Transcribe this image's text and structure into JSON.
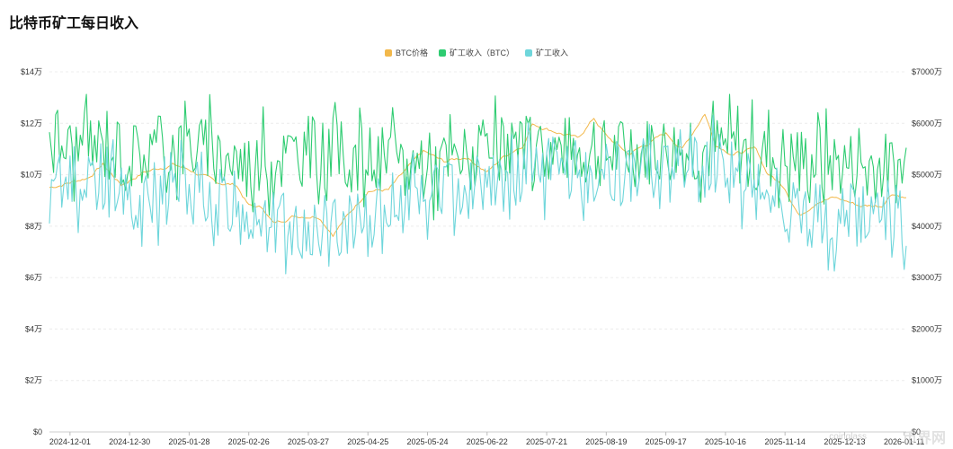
{
  "title": "比特币矿工每日收入",
  "watermark": {
    "main": "币界网",
    "sub": "coinglass"
  },
  "chart_data": {
    "type": "line",
    "title": "比特币矿工每日收入",
    "legend_position": "top-center",
    "grid": true,
    "x_ticks": [
      "2024-12-01",
      "2024-12-30",
      "2025-01-28",
      "2025-02-26",
      "2025-03-27",
      "2025-04-25",
      "2025-05-24",
      "2025-06-22",
      "2025-07-21",
      "2025-08-19",
      "2025-09-17",
      "2025-10-16",
      "2025-11-14",
      "2025-12-13",
      "2026-01-11"
    ],
    "x_range": [
      "2024-11-21",
      "2026-01-12"
    ],
    "left_axis": {
      "ticks": [
        "$0",
        "$2万",
        "$4万",
        "$6万",
        "$8万",
        "$10万",
        "$12万",
        "$14万"
      ],
      "range": [
        0,
        140000
      ]
    },
    "right_axis": {
      "ticks": [
        "$0",
        "$1000万",
        "$2000万",
        "$3000万",
        "$4000万",
        "$5000万",
        "$6000万",
        "$7000万"
      ],
      "range": [
        0,
        70000000
      ]
    },
    "series": [
      {
        "name": "BTC价格",
        "axis": "left",
        "color": "#F2B84B",
        "points": [
          [
            "2024-11-21",
            95000
          ],
          [
            "2024-12-01",
            97000
          ],
          [
            "2024-12-10",
            99000
          ],
          [
            "2024-12-17",
            104000
          ],
          [
            "2024-12-26",
            96000
          ],
          [
            "2025-01-06",
            101000
          ],
          [
            "2025-01-20",
            104000
          ],
          [
            "2025-01-28",
            102000
          ],
          [
            "2025-02-10",
            97000
          ],
          [
            "2025-02-20",
            96000
          ],
          [
            "2025-02-26",
            88000
          ],
          [
            "2025-03-05",
            87000
          ],
          [
            "2025-03-10",
            81000
          ],
          [
            "2025-03-20",
            84000
          ],
          [
            "2025-04-01",
            84000
          ],
          [
            "2025-04-08",
            77000
          ],
          [
            "2025-04-15",
            84000
          ],
          [
            "2025-04-25",
            94000
          ],
          [
            "2025-05-05",
            94000
          ],
          [
            "2025-05-15",
            103000
          ],
          [
            "2025-05-22",
            109000
          ],
          [
            "2025-06-01",
            105000
          ],
          [
            "2025-06-12",
            107000
          ],
          [
            "2025-06-22",
            101000
          ],
          [
            "2025-06-30",
            107000
          ],
          [
            "2025-07-10",
            112000
          ],
          [
            "2025-07-14",
            120000
          ],
          [
            "2025-07-21",
            118000
          ],
          [
            "2025-08-05",
            114000
          ],
          [
            "2025-08-13",
            122000
          ],
          [
            "2025-08-19",
            115000
          ],
          [
            "2025-08-30",
            108000
          ],
          [
            "2025-09-10",
            113000
          ],
          [
            "2025-09-17",
            116000
          ],
          [
            "2025-09-25",
            110000
          ],
          [
            "2025-10-06",
            124000
          ],
          [
            "2025-10-11",
            112000
          ],
          [
            "2025-10-20",
            108000
          ],
          [
            "2025-10-31",
            110000
          ],
          [
            "2025-11-05",
            101000
          ],
          [
            "2025-11-14",
            95000
          ],
          [
            "2025-11-21",
            84000
          ],
          [
            "2025-11-30",
            90000
          ],
          [
            "2025-12-08",
            91000
          ],
          [
            "2025-12-13",
            90000
          ],
          [
            "2025-12-20",
            88000
          ],
          [
            "2025-12-31",
            88000
          ],
          [
            "2026-01-05",
            93000
          ],
          [
            "2026-01-12",
            91000
          ]
        ]
      },
      {
        "name": "矿工收入（BTC）",
        "axis": "left",
        "color": "#2ECC71",
        "points": [
          [
            "2024-11-21",
            118000
          ],
          [
            "2024-12-01",
            110000
          ],
          [
            "2024-12-15",
            112000
          ],
          [
            "2024-12-30",
            108000
          ],
          [
            "2025-01-28",
            112000
          ],
          [
            "2025-02-26",
            104000
          ],
          [
            "2025-03-27",
            110000
          ],
          [
            "2025-04-25",
            106000
          ],
          [
            "2025-05-24",
            104000
          ],
          [
            "2025-06-22",
            108000
          ],
          [
            "2025-07-21",
            110000
          ],
          [
            "2025-08-19",
            108000
          ],
          [
            "2025-09-17",
            110000
          ],
          [
            "2025-10-16",
            110000
          ],
          [
            "2025-11-14",
            106000
          ],
          [
            "2025-12-13",
            104000
          ],
          [
            "2026-01-12",
            102000
          ]
        ]
      },
      {
        "name": "矿工收入",
        "axis": "right",
        "color": "#6FD6DB",
        "points": [
          [
            "2024-11-21",
            46000000
          ],
          [
            "2024-12-01",
            49000000
          ],
          [
            "2024-12-30",
            46000000
          ],
          [
            "2025-01-28",
            47000000
          ],
          [
            "2025-02-26",
            42000000
          ],
          [
            "2025-03-27",
            39000000
          ],
          [
            "2025-04-25",
            42000000
          ],
          [
            "2025-05-24",
            47000000
          ],
          [
            "2025-06-22",
            48000000
          ],
          [
            "2025-07-21",
            51000000
          ],
          [
            "2025-08-19",
            50000000
          ],
          [
            "2025-09-17",
            51000000
          ],
          [
            "2025-10-16",
            52000000
          ],
          [
            "2025-11-14",
            43000000
          ],
          [
            "2025-12-13",
            41000000
          ],
          [
            "2026-01-12",
            42000000
          ]
        ]
      }
    ]
  }
}
